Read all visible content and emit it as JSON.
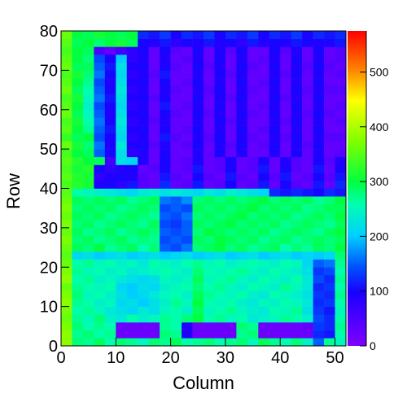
{
  "chart_data": {
    "type": "heatmap",
    "x_label": "Column",
    "y_label": "Row",
    "xlim": [
      0,
      52
    ],
    "ylim": [
      0,
      80
    ],
    "zlim": [
      0,
      575
    ],
    "xticks": [
      0,
      10,
      20,
      30,
      40,
      50
    ],
    "yticks": [
      0,
      10,
      20,
      30,
      40,
      50,
      60,
      70,
      80
    ],
    "zticks": [
      0,
      100,
      200,
      300,
      400,
      500
    ],
    "colorscale": [
      [
        0,
        "#8000ff"
      ],
      [
        0.17,
        "#1a00ff"
      ],
      [
        0.25,
        "#0050ff"
      ],
      [
        0.35,
        "#00d0ff"
      ],
      [
        0.45,
        "#00ffb0"
      ],
      [
        0.52,
        "#00ff40"
      ],
      [
        0.65,
        "#80ff00"
      ],
      [
        0.78,
        "#ffff00"
      ],
      [
        0.88,
        "#ff8000"
      ],
      [
        1,
        "#ff0000"
      ]
    ],
    "z": [
      [
        380,
        280,
        270,
        290,
        260,
        280,
        270,
        250,
        280,
        270,
        290,
        260,
        270,
        280,
        260,
        270,
        280,
        250,
        290,
        270,
        260,
        280,
        240,
        150,
        270,
        250
      ],
      [
        380,
        270,
        280,
        260,
        270,
        20,
        20,
        20,
        20,
        280,
        270,
        90,
        20,
        20,
        20,
        20,
        270,
        280,
        20,
        20,
        20,
        20,
        20,
        120,
        110,
        260
      ],
      [
        370,
        280,
        260,
        270,
        260,
        20,
        20,
        20,
        20,
        270,
        260,
        90,
        20,
        20,
        20,
        20,
        280,
        270,
        20,
        20,
        20,
        20,
        30,
        130,
        120,
        270
      ],
      [
        360,
        270,
        250,
        280,
        240,
        230,
        260,
        240,
        250,
        270,
        260,
        280,
        300,
        260,
        270,
        250,
        260,
        230,
        240,
        250,
        270,
        260,
        240,
        140,
        120,
        260
      ],
      [
        370,
        260,
        270,
        250,
        230,
        220,
        210,
        230,
        220,
        250,
        260,
        240,
        290,
        250,
        260,
        270,
        250,
        240,
        230,
        260,
        250,
        270,
        220,
        130,
        110,
        250
      ],
      [
        380,
        270,
        260,
        240,
        250,
        210,
        220,
        200,
        220,
        240,
        270,
        250,
        300,
        260,
        250,
        260,
        240,
        230,
        250,
        240,
        260,
        250,
        230,
        120,
        130,
        260
      ],
      [
        370,
        280,
        250,
        260,
        240,
        220,
        200,
        210,
        230,
        250,
        260,
        240,
        290,
        270,
        260,
        250,
        260,
        240,
        230,
        260,
        250,
        240,
        220,
        130,
        120,
        270
      ],
      [
        360,
        270,
        260,
        250,
        260,
        210,
        200,
        220,
        210,
        240,
        250,
        260,
        280,
        260,
        270,
        250,
        240,
        260,
        250,
        240,
        270,
        250,
        230,
        120,
        130,
        260
      ],
      [
        380,
        260,
        270,
        240,
        250,
        230,
        220,
        210,
        220,
        250,
        240,
        250,
        290,
        250,
        260,
        270,
        250,
        240,
        260,
        250,
        240,
        260,
        230,
        140,
        120,
        270
      ],
      [
        370,
        270,
        250,
        260,
        240,
        250,
        230,
        240,
        250,
        260,
        250,
        240,
        280,
        260,
        250,
        260,
        270,
        250,
        240,
        260,
        250,
        240,
        220,
        130,
        140,
        260
      ],
      [
        360,
        260,
        270,
        250,
        260,
        240,
        250,
        230,
        260,
        250,
        240,
        260,
        270,
        250,
        260,
        240,
        250,
        260,
        250,
        240,
        260,
        250,
        210,
        150,
        160,
        270
      ],
      [
        350,
        210,
        220,
        200,
        210,
        220,
        200,
        210,
        220,
        200,
        210,
        220,
        200,
        210,
        220,
        200,
        210,
        220,
        200,
        210,
        220,
        200,
        210,
        200,
        210,
        280
      ],
      [
        360,
        290,
        280,
        300,
        270,
        280,
        290,
        260,
        280,
        150,
        140,
        160,
        280,
        290,
        300,
        280,
        290,
        270,
        280,
        290,
        260,
        280,
        270,
        290,
        280,
        300
      ],
      [
        370,
        280,
        290,
        270,
        280,
        290,
        270,
        280,
        270,
        140,
        150,
        140,
        290,
        280,
        300,
        290,
        280,
        290,
        270,
        280,
        290,
        270,
        280,
        290,
        280,
        290
      ],
      [
        360,
        290,
        270,
        280,
        290,
        270,
        280,
        290,
        280,
        150,
        140,
        150,
        280,
        300,
        290,
        280,
        290,
        280,
        290,
        270,
        280,
        290,
        280,
        270,
        290,
        300
      ],
      [
        370,
        280,
        290,
        270,
        280,
        290,
        280,
        270,
        290,
        140,
        130,
        150,
        290,
        280,
        290,
        300,
        280,
        290,
        280,
        290,
        270,
        280,
        290,
        280,
        270,
        290
      ],
      [
        360,
        290,
        280,
        290,
        270,
        280,
        290,
        280,
        270,
        150,
        140,
        160,
        280,
        290,
        280,
        290,
        300,
        280,
        290,
        280,
        290,
        270,
        280,
        290,
        280,
        300
      ],
      [
        370,
        280,
        290,
        280,
        290,
        270,
        280,
        290,
        280,
        140,
        150,
        140,
        290,
        280,
        290,
        280,
        290,
        300,
        280,
        290,
        280,
        290,
        270,
        280,
        290,
        290
      ],
      [
        360,
        290,
        280,
        290,
        280,
        290,
        270,
        280,
        290,
        160,
        150,
        170,
        280,
        290,
        280,
        290,
        280,
        290,
        300,
        280,
        290,
        280,
        290,
        270,
        280,
        300
      ],
      [
        350,
        260,
        250,
        240,
        230,
        220,
        210,
        230,
        240,
        220,
        230,
        220,
        210,
        230,
        220,
        240,
        230,
        220,
        210,
        120,
        110,
        120,
        110,
        100,
        120,
        110
      ],
      [
        340,
        320,
        310,
        90,
        100,
        80,
        110,
        40,
        30,
        120,
        30,
        40,
        110,
        30,
        40,
        100,
        30,
        40,
        110,
        30,
        100,
        40,
        30,
        110,
        30,
        120
      ],
      [
        350,
        320,
        310,
        80,
        90,
        100,
        90,
        40,
        30,
        110,
        40,
        30,
        100,
        40,
        30,
        110,
        40,
        30,
        100,
        40,
        110,
        30,
        40,
        100,
        40,
        110
      ],
      [
        340,
        310,
        320,
        100,
        80,
        90,
        100,
        30,
        40,
        100,
        30,
        40,
        110,
        30,
        40,
        100,
        30,
        40,
        110,
        30,
        100,
        40,
        30,
        110,
        30,
        100
      ],
      [
        350,
        320,
        300,
        290,
        60,
        220,
        210,
        90,
        30,
        100,
        30,
        40,
        90,
        30,
        40,
        100,
        30,
        40,
        100,
        30,
        90,
        40,
        30,
        100,
        40,
        90
      ],
      [
        340,
        300,
        290,
        150,
        100,
        220,
        80,
        90,
        30,
        100,
        30,
        30,
        90,
        30,
        100,
        30,
        90,
        30,
        30,
        90,
        30,
        100,
        30,
        90,
        30,
        40
      ],
      [
        360,
        310,
        280,
        160,
        90,
        230,
        90,
        100,
        40,
        90,
        30,
        40,
        100,
        30,
        90,
        40,
        100,
        30,
        40,
        100,
        30,
        90,
        40,
        100,
        30,
        30
      ],
      [
        330,
        290,
        300,
        140,
        100,
        210,
        80,
        90,
        30,
        110,
        40,
        30,
        90,
        40,
        100,
        30,
        90,
        40,
        30,
        90,
        40,
        100,
        30,
        90,
        40,
        40
      ],
      [
        350,
        300,
        270,
        150,
        110,
        220,
        90,
        100,
        30,
        100,
        30,
        40,
        100,
        30,
        90,
        30,
        100,
        30,
        40,
        100,
        30,
        90,
        30,
        100,
        30,
        30
      ],
      [
        340,
        310,
        260,
        160,
        100,
        230,
        80,
        90,
        40,
        90,
        30,
        30,
        90,
        30,
        100,
        40,
        90,
        30,
        30,
        90,
        40,
        100,
        30,
        90,
        30,
        40
      ],
      [
        360,
        290,
        250,
        150,
        90,
        220,
        90,
        100,
        30,
        100,
        40,
        30,
        100,
        40,
        90,
        30,
        100,
        40,
        30,
        100,
        30,
        90,
        40,
        100,
        40,
        30
      ],
      [
        350,
        300,
        240,
        140,
        100,
        210,
        80,
        90,
        30,
        110,
        30,
        40,
        90,
        30,
        100,
        30,
        90,
        30,
        40,
        90,
        30,
        100,
        30,
        90,
        30,
        40
      ],
      [
        340,
        310,
        250,
        160,
        110,
        220,
        90,
        100,
        40,
        100,
        30,
        30,
        100,
        30,
        90,
        40,
        100,
        30,
        30,
        100,
        40,
        90,
        30,
        100,
        30,
        30
      ],
      [
        360,
        290,
        260,
        150,
        100,
        230,
        80,
        90,
        30,
        90,
        40,
        30,
        90,
        40,
        100,
        30,
        90,
        40,
        30,
        90,
        30,
        100,
        40,
        90,
        40,
        40
      ],
      [
        350,
        300,
        270,
        140,
        90,
        220,
        90,
        100,
        30,
        100,
        30,
        40,
        100,
        30,
        90,
        30,
        100,
        30,
        40,
        100,
        30,
        90,
        30,
        100,
        30,
        30
      ],
      [
        340,
        310,
        280,
        160,
        100,
        210,
        80,
        90,
        40,
        110,
        30,
        30,
        90,
        30,
        100,
        40,
        90,
        30,
        30,
        90,
        40,
        100,
        30,
        90,
        30,
        40
      ],
      [
        360,
        290,
        290,
        150,
        110,
        220,
        90,
        100,
        30,
        100,
        40,
        30,
        100,
        40,
        90,
        30,
        100,
        40,
        30,
        100,
        30,
        90,
        40,
        100,
        40,
        30
      ],
      [
        350,
        300,
        280,
        140,
        100,
        200,
        80,
        90,
        30,
        90,
        30,
        40,
        90,
        30,
        100,
        30,
        90,
        30,
        40,
        90,
        30,
        100,
        30,
        90,
        30,
        40
      ],
      [
        340,
        300,
        290,
        50,
        30,
        60,
        80,
        100,
        30,
        100,
        40,
        30,
        100,
        30,
        90,
        40,
        100,
        30,
        30,
        100,
        40,
        90,
        30,
        100,
        30,
        40
      ],
      [
        350,
        290,
        300,
        280,
        300,
        310,
        290,
        100,
        90,
        110,
        80,
        100,
        90,
        110,
        90,
        100,
        80,
        110,
        90,
        100,
        90,
        110,
        100,
        90,
        100,
        110
      ],
      [
        360,
        300,
        290,
        310,
        300,
        290,
        300,
        120,
        110,
        130,
        100,
        120,
        110,
        130,
        100,
        120,
        110,
        130,
        100,
        120,
        110,
        130,
        100,
        120,
        110,
        120
      ]
    ]
  }
}
